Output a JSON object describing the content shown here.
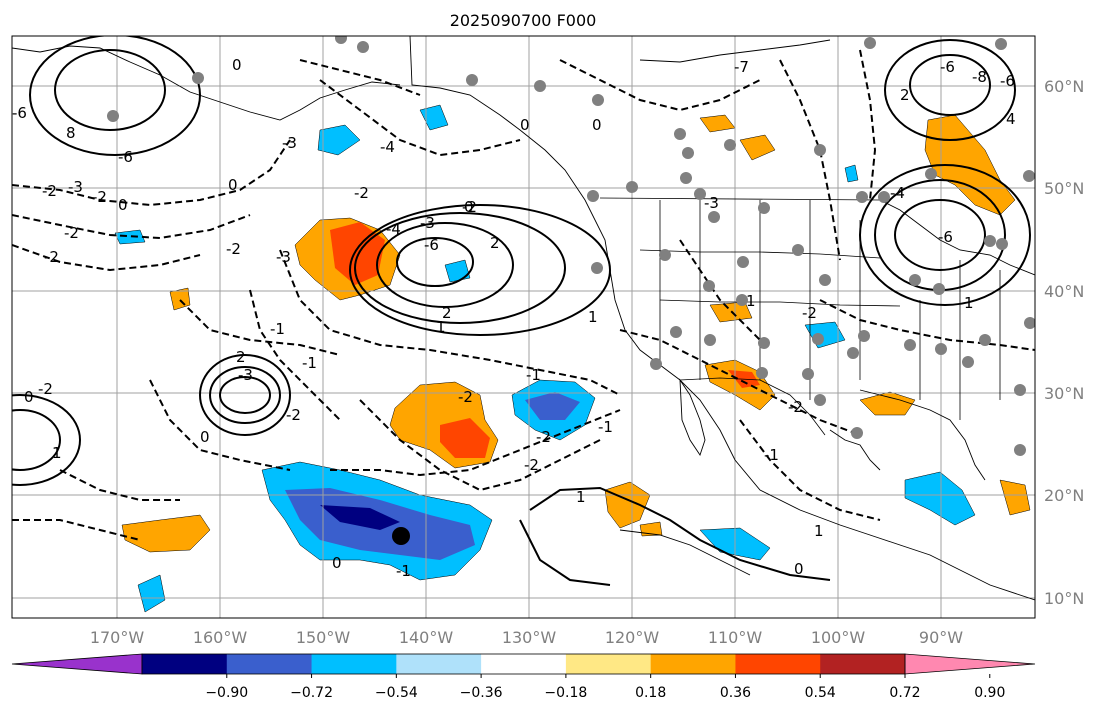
{
  "title": "2025090700 F000",
  "axes": {
    "lon_ticks": [
      "170°W",
      "160°W",
      "150°W",
      "140°W",
      "130°W",
      "120°W",
      "110°W",
      "100°W",
      "90°W"
    ],
    "lat_ticks": [
      "60°N",
      "50°N",
      "40°N",
      "30°N",
      "20°N",
      "10°N"
    ]
  },
  "colorbar": {
    "ticks": [
      "−0.90",
      "−0.72",
      "−0.54",
      "−0.36",
      "−0.18",
      "0.18",
      "0.36",
      "0.54",
      "0.72",
      "0.90"
    ],
    "colors": [
      "#9932cc",
      "#000080",
      "#3a5fcd",
      "#00bfff",
      "#afe1fa",
      "#ffffff",
      "#ffe885",
      "#ffa500",
      "#ff4500",
      "#b22222",
      "#ff88b0"
    ]
  },
  "contour_labels": [
    "-6",
    "8",
    "-6",
    "-2",
    "-3",
    "-2",
    "-2",
    "0",
    "-2",
    "-2",
    "-3",
    "-4",
    "-3",
    "0",
    "-2",
    "-4",
    "-6",
    "-3",
    "-2",
    "0",
    "2",
    "2",
    "1",
    "2",
    "-1",
    "-2",
    "-3",
    "-2",
    "0",
    "1",
    "0",
    "-1",
    "-2",
    "-1",
    "1",
    "1",
    "0",
    "-2",
    "-1",
    "-2",
    "0",
    "-1",
    "1",
    "-2",
    "-1",
    "1",
    "0",
    "-7",
    "-3",
    "0",
    "-2",
    "-6",
    "-8",
    "-6",
    "2",
    "4",
    "-6",
    "-4",
    "1",
    "0"
  ]
}
